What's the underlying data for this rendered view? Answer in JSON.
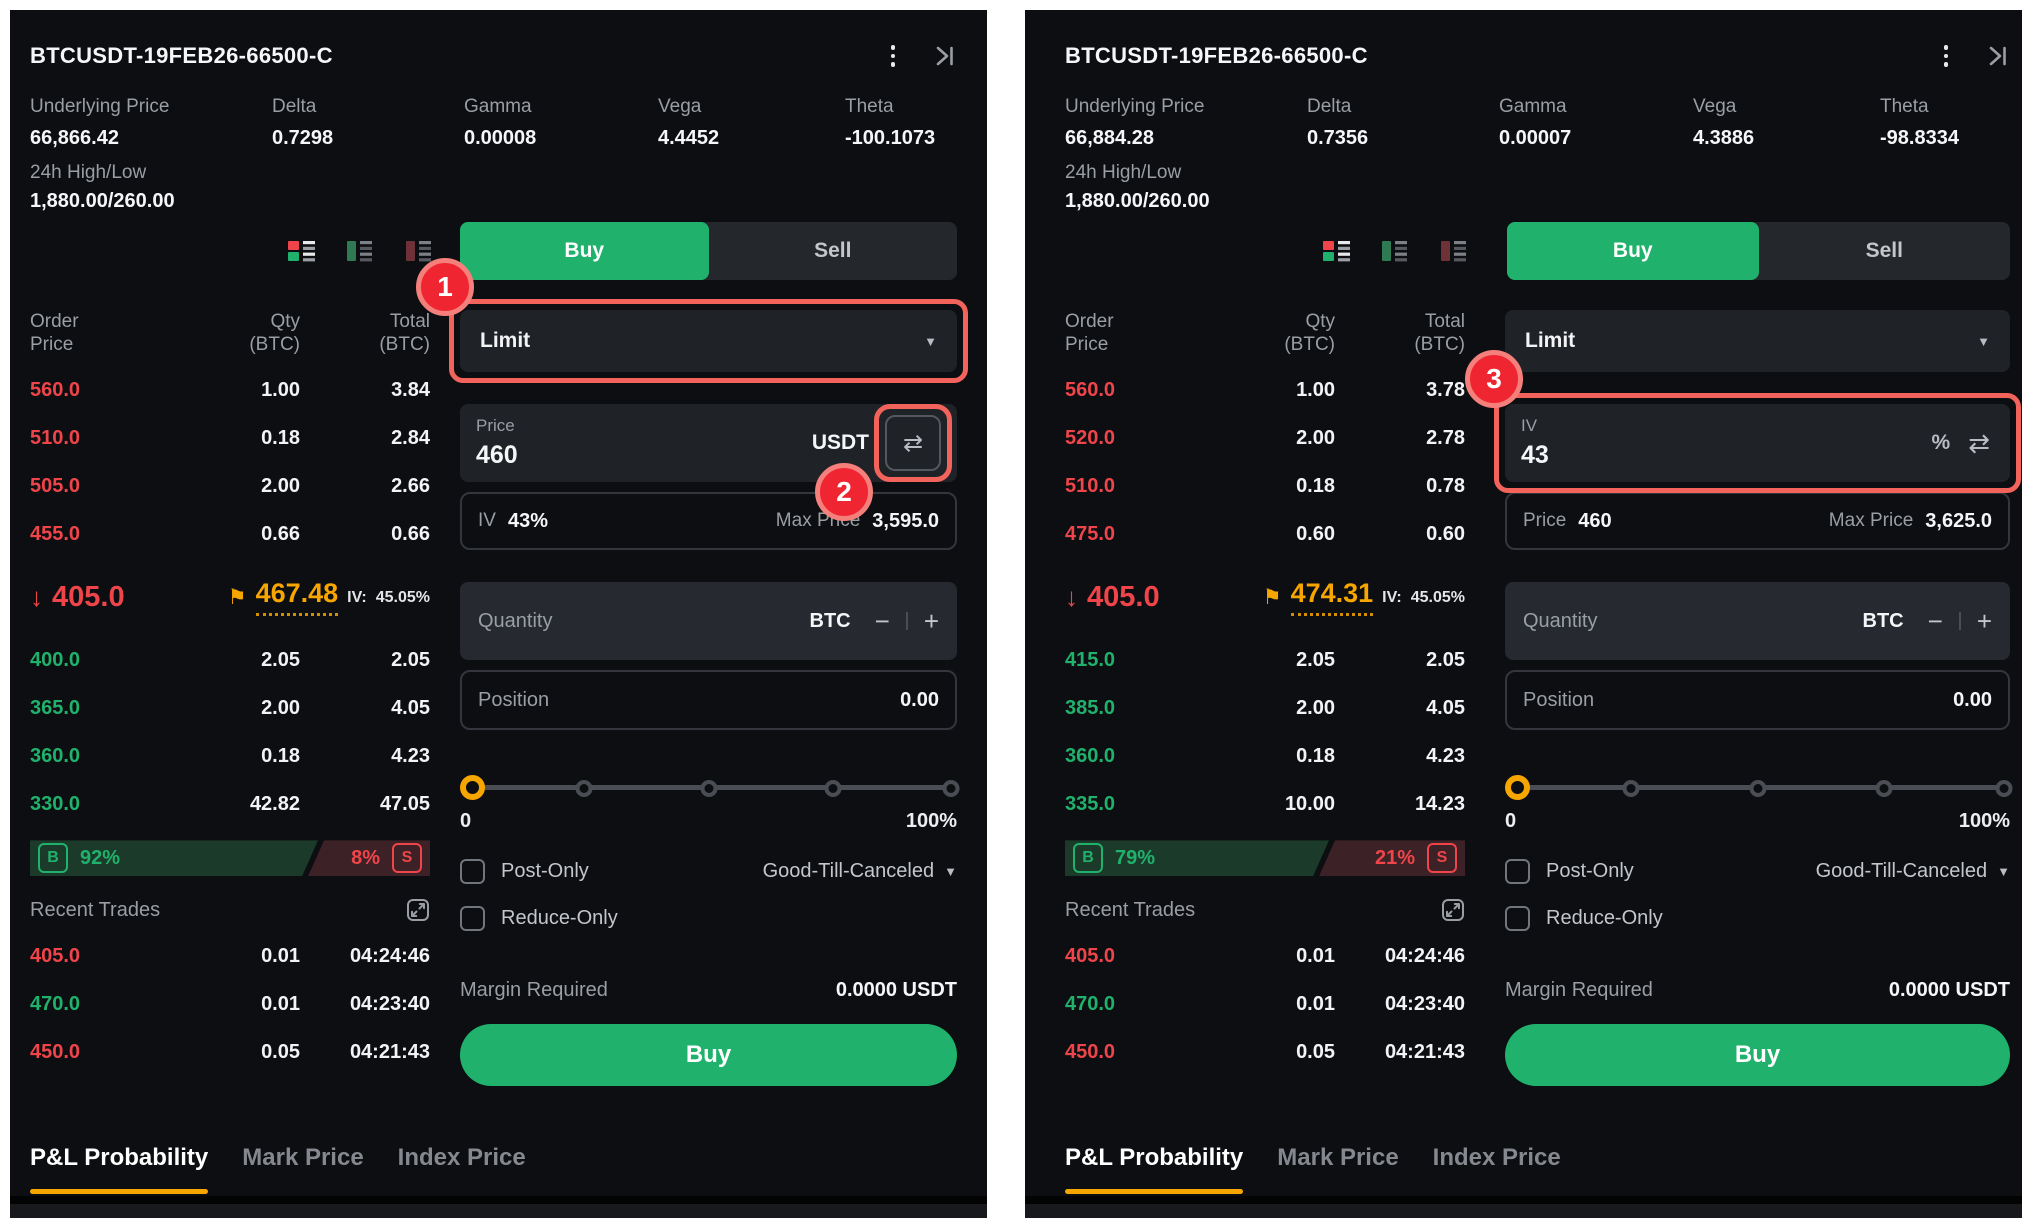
{
  "colors": {
    "green": "#20b26c",
    "red": "#ef454a",
    "orange": "#f7a600",
    "annotation_red": "#ef2631"
  },
  "annotations": {
    "badge1": "1",
    "badge2": "2",
    "badge3": "3"
  },
  "icons": {
    "swap": "⇄",
    "flag": "⚑",
    "down_arrow": "↓",
    "caret": "▼",
    "minus": "−",
    "plus": "+"
  },
  "panels": [
    {
      "title": "BTCUSDT-19FEB26-66500-C",
      "greeks": [
        {
          "label": "Underlying Price",
          "value": "66,866.42"
        },
        {
          "label": "Delta",
          "value": "0.7298"
        },
        {
          "label": "Gamma",
          "value": "0.00008"
        },
        {
          "label": "Vega",
          "value": "4.4452"
        },
        {
          "label": "Theta",
          "value": "-100.1073"
        }
      ],
      "high_low": {
        "label": "24h High/Low",
        "value": "1,880.00/260.00"
      },
      "side": {
        "buy": "Buy",
        "sell": "Sell"
      },
      "orderbook": {
        "headers": [
          {
            "line1": "Order",
            "line2": "Price"
          },
          {
            "line1": "Qty",
            "line2": "(BTC)"
          },
          {
            "line1": "Total",
            "line2": "(BTC)"
          }
        ],
        "asks": [
          {
            "price": "560.0",
            "qty": "1.00",
            "total": "3.84"
          },
          {
            "price": "510.0",
            "qty": "0.18",
            "total": "2.84"
          },
          {
            "price": "505.0",
            "qty": "2.00",
            "total": "2.66"
          },
          {
            "price": "455.0",
            "qty": "0.66",
            "total": "0.66"
          }
        ],
        "last": {
          "price": "405.0",
          "mark": "467.48",
          "iv_label": "IV:",
          "iv_value": "45.05%"
        },
        "bids": [
          {
            "price": "400.0",
            "qty": "2.05",
            "total": "2.05"
          },
          {
            "price": "365.0",
            "qty": "2.00",
            "total": "4.05"
          },
          {
            "price": "360.0",
            "qty": "0.18",
            "total": "4.23"
          },
          {
            "price": "330.0",
            "qty": "42.82",
            "total": "47.05"
          }
        ],
        "ratio": {
          "b": "B",
          "buy_pct": "92%",
          "sell_pct": "8%",
          "s": "S",
          "buy_width_pct": 70
        }
      },
      "recent": {
        "title": "Recent Trades",
        "rows": [
          {
            "price": "405.0",
            "qty": "0.01",
            "time": "04:24:46",
            "side": "sell"
          },
          {
            "price": "470.0",
            "qty": "0.01",
            "time": "04:23:40",
            "side": "buy"
          },
          {
            "price": "450.0",
            "qty": "0.05",
            "time": "04:21:43",
            "side": "sell"
          }
        ]
      },
      "form": {
        "order_type": "Limit",
        "main_input": {
          "label": "Price",
          "value": "460",
          "unit": "USDT"
        },
        "info_row": {
          "left_label": "IV",
          "left_value": "43%",
          "right_label": "Max Price",
          "right_value": "3,595.0"
        },
        "quantity_label": "Quantity",
        "quantity_unit": "BTC",
        "position_label": "Position",
        "position_value": "0.00",
        "slider": {
          "min": "0",
          "max": "100%"
        },
        "post_only": "Post-Only",
        "reduce_only": "Reduce-Only",
        "tif": "Good-Till-Canceled",
        "margin_label": "Margin Required",
        "margin_value": "0.0000 USDT",
        "submit": "Buy"
      },
      "tabs": [
        "P&L Probability",
        "Mark Price",
        "Index Price"
      ]
    },
    {
      "title": "BTCUSDT-19FEB26-66500-C",
      "greeks": [
        {
          "label": "Underlying Price",
          "value": "66,884.28"
        },
        {
          "label": "Delta",
          "value": "0.7356"
        },
        {
          "label": "Gamma",
          "value": "0.00007"
        },
        {
          "label": "Vega",
          "value": "4.3886"
        },
        {
          "label": "Theta",
          "value": "-98.8334"
        }
      ],
      "high_low": {
        "label": "24h High/Low",
        "value": "1,880.00/260.00"
      },
      "side": {
        "buy": "Buy",
        "sell": "Sell"
      },
      "orderbook": {
        "headers": [
          {
            "line1": "Order",
            "line2": "Price"
          },
          {
            "line1": "Qty",
            "line2": "(BTC)"
          },
          {
            "line1": "Total",
            "line2": "(BTC)"
          }
        ],
        "asks": [
          {
            "price": "560.0",
            "qty": "1.00",
            "total": "3.78"
          },
          {
            "price": "520.0",
            "qty": "2.00",
            "total": "2.78"
          },
          {
            "price": "510.0",
            "qty": "0.18",
            "total": "0.78"
          },
          {
            "price": "475.0",
            "qty": "0.60",
            "total": "0.60"
          }
        ],
        "last": {
          "price": "405.0",
          "mark": "474.31",
          "iv_label": "IV:",
          "iv_value": "45.05%"
        },
        "bids": [
          {
            "price": "415.0",
            "qty": "2.05",
            "total": "2.05"
          },
          {
            "price": "385.0",
            "qty": "2.00",
            "total": "4.05"
          },
          {
            "price": "360.0",
            "qty": "0.18",
            "total": "4.23"
          },
          {
            "price": "335.0",
            "qty": "10.00",
            "total": "14.23"
          }
        ],
        "ratio": {
          "b": "B",
          "buy_pct": "79%",
          "sell_pct": "21%",
          "s": "S",
          "buy_width_pct": 64
        }
      },
      "recent": {
        "title": "Recent Trades",
        "rows": [
          {
            "price": "405.0",
            "qty": "0.01",
            "time": "04:24:46",
            "side": "sell"
          },
          {
            "price": "470.0",
            "qty": "0.01",
            "time": "04:23:40",
            "side": "buy"
          },
          {
            "price": "450.0",
            "qty": "0.05",
            "time": "04:21:43",
            "side": "sell"
          }
        ]
      },
      "form": {
        "order_type": "Limit",
        "main_input": {
          "label": "IV",
          "value": "43",
          "unit": "%"
        },
        "info_row": {
          "left_label": "Price",
          "left_value": "460",
          "right_label": "Max Price",
          "right_value": "3,625.0"
        },
        "quantity_label": "Quantity",
        "quantity_unit": "BTC",
        "position_label": "Position",
        "position_value": "0.00",
        "slider": {
          "min": "0",
          "max": "100%"
        },
        "post_only": "Post-Only",
        "reduce_only": "Reduce-Only",
        "tif": "Good-Till-Canceled",
        "margin_label": "Margin Required",
        "margin_value": "0.0000 USDT",
        "submit": "Buy"
      },
      "tabs": [
        "P&L Probability",
        "Mark Price",
        "Index Price"
      ]
    }
  ]
}
